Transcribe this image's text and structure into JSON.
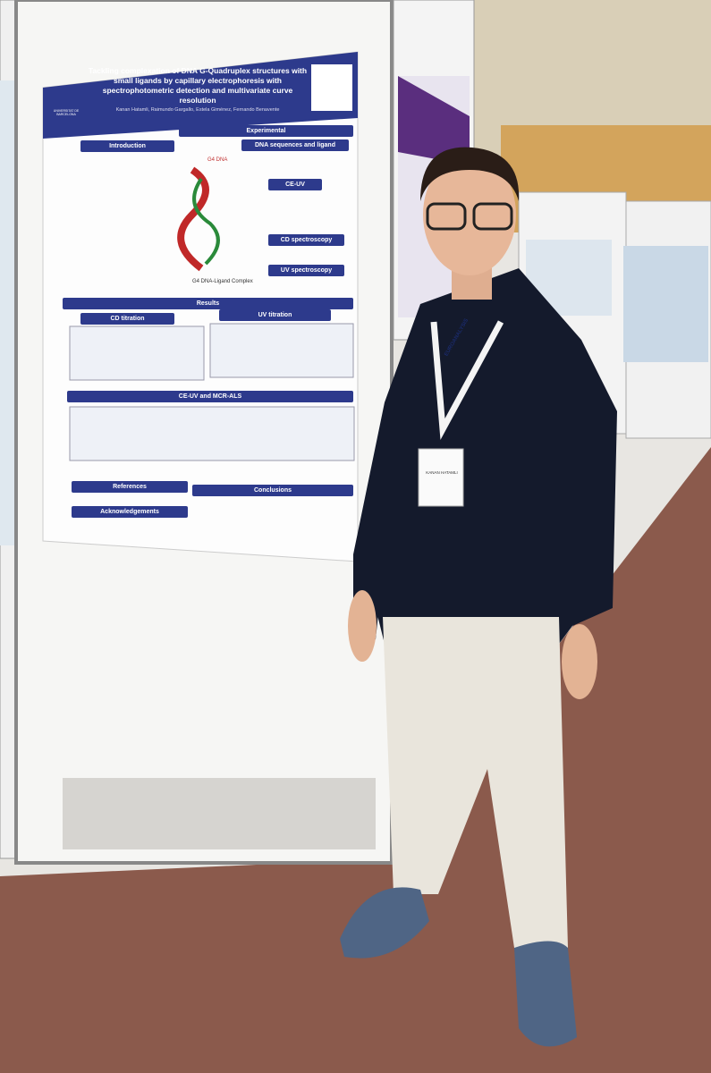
{
  "poster": {
    "university": "UNIVERSITAT DE BARCELONA",
    "title": "Tackling complexation of DNA G-Quadruplex structures with small ligands by capillary electrophoresis with spectrophotometric detection and multivariate curve resolution",
    "authors": "Kanan Hatamli, Raimundo Gargallo, Estela Giménez, Fernando Benavente",
    "sections": {
      "introduction": "Introduction",
      "experimental": "Experimental",
      "dna_sequences": "DNA sequences and ligand",
      "ce_uv": "CE-UV",
      "cd_spectroscopy": "CD spectroscopy",
      "uv_spectroscopy": "UV spectroscopy",
      "results": "Results",
      "cd_titration": "CD titration",
      "uv_titration": "UV titration",
      "ce_uv_mcr": "CE-UV and MCR-ALS",
      "references": "References",
      "conclusions": "Conclusions",
      "acknowledgements": "Acknowledgements"
    },
    "figure_labels": [
      "G4 DNA",
      "G4 DNA-Ligand Complex"
    ]
  },
  "badge": {
    "event": "EUROANALYSIS",
    "name": "KANAN HATAMLI"
  }
}
